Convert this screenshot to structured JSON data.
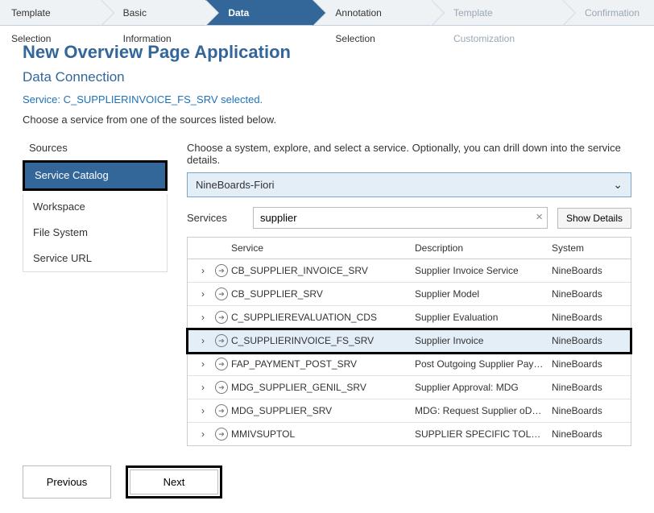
{
  "wizard": {
    "steps": [
      {
        "label": "Template Selection",
        "state": "done"
      },
      {
        "label": "Basic Information",
        "state": "done"
      },
      {
        "label": "Data Connection",
        "state": "active"
      },
      {
        "label": "Annotation Selection",
        "state": "done"
      },
      {
        "label": "Template Customization",
        "state": "disabled"
      },
      {
        "label": "Confirmation",
        "state": "disabled"
      }
    ]
  },
  "header": {
    "title": "New Overview Page Application",
    "subtitle": "Data Connection",
    "selected_service": "Service: C_SUPPLIERINVOICE_FS_SRV selected.",
    "instruction": "Choose a service from one of the sources listed below."
  },
  "sources": {
    "heading": "Sources",
    "items": [
      {
        "label": "Service Catalog",
        "selected": true,
        "highlighted": true
      },
      {
        "label": "Workspace",
        "selected": false
      },
      {
        "label": "File System",
        "selected": false
      },
      {
        "label": "Service URL",
        "selected": false
      }
    ]
  },
  "right": {
    "instruction": "Choose a system, explore, and select a service. Optionally, you can drill down into the service details.",
    "system_select": {
      "value": "NineBoards-Fiori"
    },
    "filter": {
      "label": "Services",
      "value": "supplier",
      "show_details_label": "Show Details"
    },
    "table": {
      "columns": {
        "service": "Service",
        "description": "Description",
        "system": "System"
      },
      "rows": [
        {
          "service": "CB_SUPPLIER_INVOICE_SRV",
          "description": "Supplier Invoice Service",
          "system": "NineBoards",
          "selected": false,
          "highlighted": false
        },
        {
          "service": "CB_SUPPLIER_SRV",
          "description": "Supplier Model",
          "system": "NineBoards",
          "selected": false,
          "highlighted": false
        },
        {
          "service": "C_SUPPLIEREVALUATION_CDS",
          "description": "Supplier Evaluation",
          "system": "NineBoards",
          "selected": false,
          "highlighted": false
        },
        {
          "service": "C_SUPPLIERINVOICE_FS_SRV",
          "description": "Supplier Invoice",
          "system": "NineBoards",
          "selected": true,
          "highlighted": true
        },
        {
          "service": "FAP_PAYMENT_POST_SRV",
          "description": "Post Outgoing Supplier Pay…",
          "system": "NineBoards",
          "selected": false,
          "highlighted": false
        },
        {
          "service": "MDG_SUPPLIER_GENIL_SRV",
          "description": "Supplier Approval: MDG",
          "system": "NineBoards",
          "selected": false,
          "highlighted": false
        },
        {
          "service": "MDG_SUPPLIER_SRV",
          "description": "MDG: Request Supplier oD…",
          "system": "NineBoards",
          "selected": false,
          "highlighted": false
        },
        {
          "service": "MMIVSUPTOL",
          "description": "SUPPLIER SPECIFIC TOLE…",
          "system": "NineBoards",
          "selected": false,
          "highlighted": false
        }
      ]
    }
  },
  "footer": {
    "previous_label": "Previous",
    "next_label": "Next"
  },
  "colors": {
    "accent": "#336699",
    "link": "#1d72b8",
    "panel_bg": "#eef2f5",
    "selected_row_bg": "#e4eef7",
    "border": "#c6d0db"
  }
}
